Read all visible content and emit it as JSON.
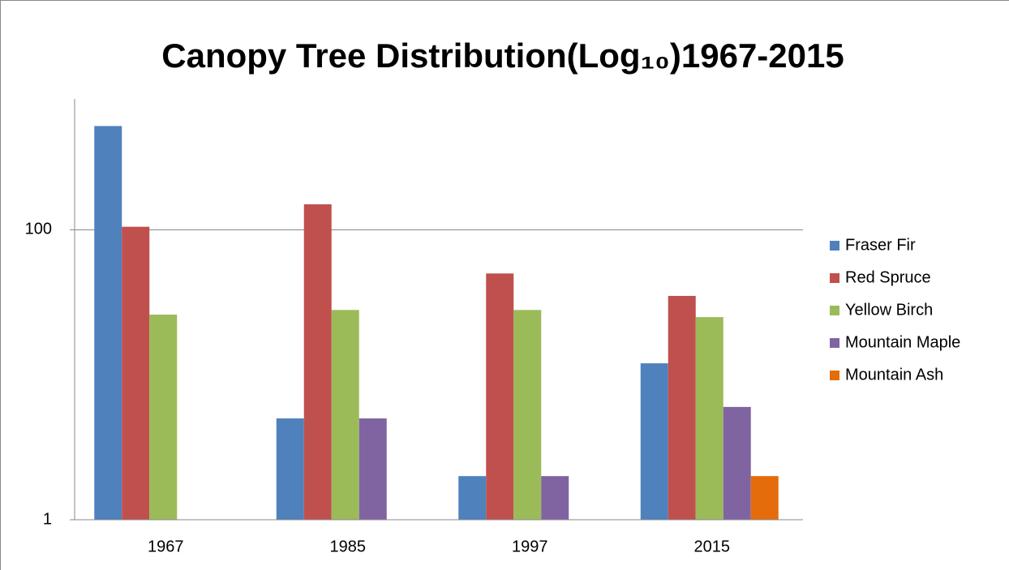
{
  "chart_data": {
    "type": "bar",
    "title": "Canopy Tree Distribution(Log₁₀)1967-2015",
    "categories": [
      "1967",
      "1985",
      "1997",
      "2015"
    ],
    "series": [
      {
        "name": "Fraser Fir",
        "color": "#4f81bd",
        "values": [
          520,
          5,
          2,
          12
        ]
      },
      {
        "name": "Red Spruce",
        "color": "#c0504d",
        "values": [
          105,
          150,
          50,
          35
        ]
      },
      {
        "name": "Yellow Birch",
        "color": "#9bbb59",
        "values": [
          26,
          28,
          28,
          25
        ]
      },
      {
        "name": "Mountain Maple",
        "color": "#8064a2",
        "values": [
          null,
          5,
          2,
          6
        ]
      },
      {
        "name": "Mountain Ash",
        "color": "#e46c0a",
        "values": [
          null,
          null,
          null,
          2
        ]
      }
    ],
    "ylim": [
      1,
      800
    ],
    "yticks": [
      1,
      100
    ],
    "log_y": true,
    "grid": true,
    "legend": "right"
  }
}
